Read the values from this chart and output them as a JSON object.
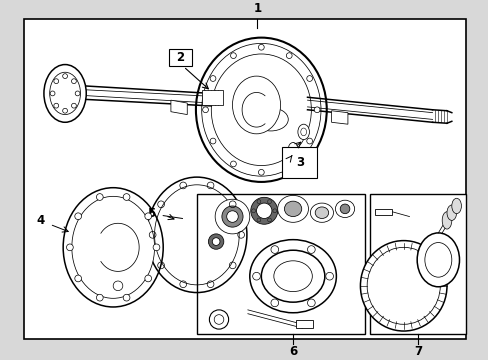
{
  "bg_color": "#d8d8d8",
  "border_color": "#000000",
  "line_color": "#000000",
  "text_color": "#000000",
  "figsize": [
    4.89,
    3.6
  ],
  "dpi": 100,
  "label_fontsize": 8.5,
  "lw_main": 1.1,
  "lw_thin": 0.55,
  "lw_thick": 1.5
}
